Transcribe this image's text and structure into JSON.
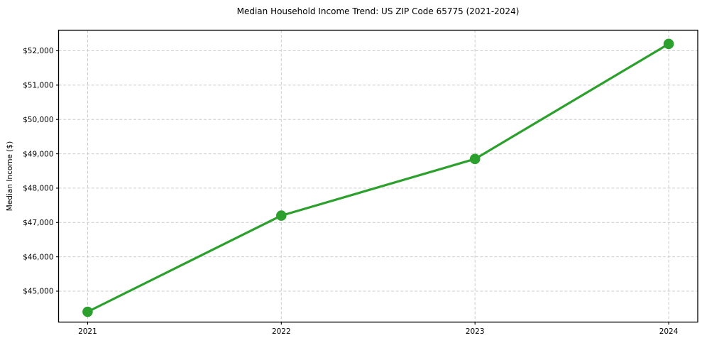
{
  "chart_data": {
    "type": "line",
    "title": "Median Household Income Trend: US ZIP Code 65775 (2021-2024)",
    "xlabel": "",
    "ylabel": "Median Income ($)",
    "x": [
      2021,
      2022,
      2023,
      2024
    ],
    "values": [
      44400,
      47200,
      48850,
      52200
    ],
    "xlim": [
      2020.85,
      2024.15
    ],
    "ylim": [
      44100,
      52600
    ],
    "xticks": [
      2021,
      2022,
      2023,
      2024
    ],
    "xtick_labels": [
      "2021",
      "2022",
      "2023",
      "2024"
    ],
    "yticks": [
      45000,
      46000,
      47000,
      48000,
      49000,
      50000,
      51000,
      52000
    ],
    "ytick_labels": [
      "$45,000",
      "$46,000",
      "$47,000",
      "$48,000",
      "$49,000",
      "$50,000",
      "$51,000",
      "$52,000"
    ],
    "grid": true,
    "grid_style": "dashed",
    "legend": "none",
    "marker": "circle",
    "colors": {
      "line": "#2ca02c",
      "marker": "#2ca02c",
      "grid": "#cccccc",
      "spine": "#000000",
      "tick": "#000000",
      "text": "#000000",
      "background": "#ffffff"
    }
  }
}
